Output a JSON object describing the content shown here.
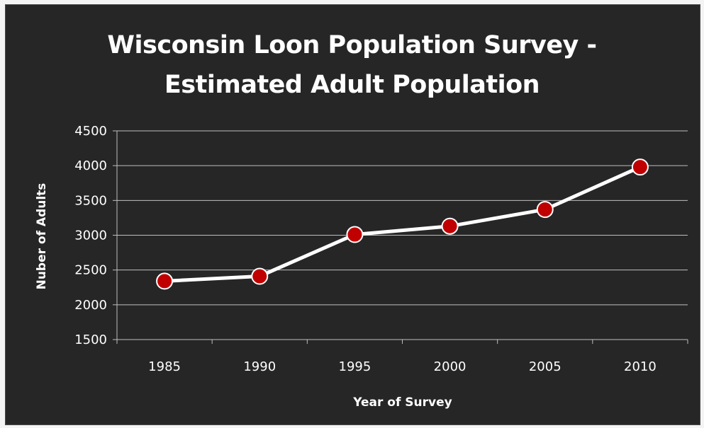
{
  "chart_data": {
    "type": "line",
    "title_lines": [
      "Wisconsin Loon Population Survey -",
      "Estimated Adult Population"
    ],
    "xlabel": "Year of Survey",
    "ylabel": "Nuber of Adults",
    "categories": [
      "1985",
      "1990",
      "1995",
      "2000",
      "2005",
      "2010"
    ],
    "series": [
      {
        "values": [
          2340,
          2410,
          3010,
          3130,
          3370,
          3980
        ]
      }
    ],
    "ylim": [
      1500,
      4500
    ],
    "yticks": [
      "1500",
      "2000",
      "2500",
      "3000",
      "3500",
      "4000",
      "4500"
    ],
    "ytick_values": [
      1500,
      2000,
      2500,
      3000,
      3500,
      4000,
      4500
    ],
    "grid": true,
    "legend": "none",
    "colors": {
      "background": "#262626",
      "line": "#ffffff",
      "marker": "#c00000",
      "marker_outline": "#ffffff",
      "gridline": "#bfbfbf"
    }
  }
}
